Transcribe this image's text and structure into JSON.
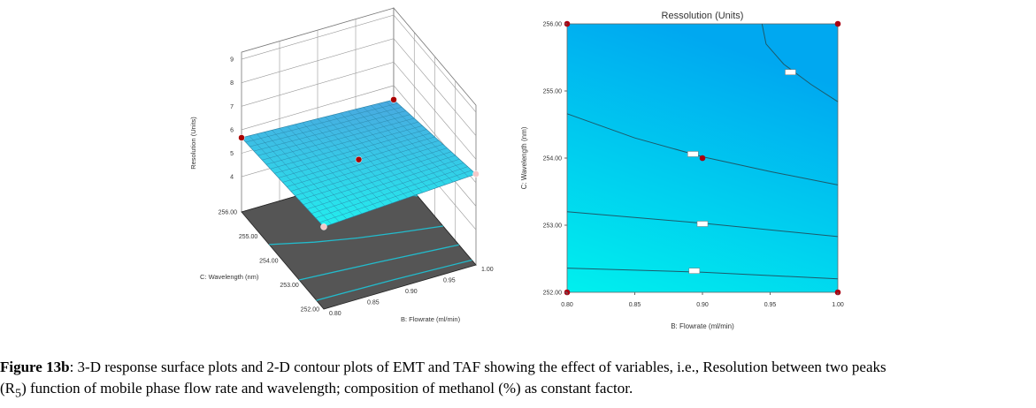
{
  "chart_data": [
    {
      "type": "surface3d",
      "zlabel": "Resolution (Units)",
      "xlabel": "B: Flowrate (ml/min)",
      "ylabel": "C: Wavelength (nm)",
      "z_ticks": [
        "4",
        "5",
        "6",
        "7",
        "8",
        "9"
      ],
      "z_tick_values": [
        4,
        5,
        6,
        7,
        8,
        9
      ],
      "x_ticks": [
        "0.80",
        "0.85",
        "0.90",
        "0.95",
        "1.00"
      ],
      "x_tick_values": [
        0.8,
        0.85,
        0.9,
        0.95,
        1.0
      ],
      "y_ticks": [
        "252.00",
        "253.00",
        "254.00",
        "255.00",
        "256.00"
      ],
      "y_tick_values": [
        252,
        253,
        254,
        255,
        256
      ],
      "surface_corners": {
        "b0.80_c256": 5.66,
        "b1.00_c256": 5.4,
        "b0.80_c252": 6.0,
        "b1.00_c252": 6.37
      },
      "grid_divisions": 20,
      "colors": {
        "surface": "#33ccee",
        "floor": "#555555",
        "contour": "#22bbcc",
        "point": "#aa0000"
      }
    },
    {
      "type": "contour",
      "title": "Ressolution (Units)",
      "xlabel": "B: Flowrate (ml/min)",
      "ylabel": "C: Wavelength (nm)",
      "xlim": [
        0.8,
        1.0
      ],
      "ylim": [
        252,
        256
      ],
      "x_ticks": [
        "0.80",
        "0.85",
        "0.90",
        "0.95",
        "1.00"
      ],
      "x_tick_values": [
        0.8,
        0.85,
        0.9,
        0.95,
        1.0
      ],
      "y_ticks": [
        "252.00",
        "253.00",
        "254.00",
        "255.00",
        "256.00"
      ],
      "y_tick_values": [
        252,
        253,
        254,
        255,
        256
      ],
      "contours": [
        {
          "points": [
            [
              0.944,
              256
            ],
            [
              0.947,
              255.7
            ],
            [
              0.96,
              255.4
            ],
            [
              0.98,
              255.1
            ],
            [
              1.0,
              254.84
            ]
          ],
          "label_at": [
            0.965,
            255.28
          ]
        },
        {
          "points": [
            [
              0.8,
              254.66
            ],
            [
              0.85,
              254.3
            ],
            [
              0.9,
              254.02
            ],
            [
              0.95,
              253.8
            ],
            [
              1.0,
              253.6
            ]
          ],
          "label_at": [
            0.893,
            254.06
          ]
        },
        {
          "points": [
            [
              0.8,
              253.2
            ],
            [
              0.9,
              253.03
            ],
            [
              1.0,
              252.83
            ]
          ],
          "label_at": [
            0.9,
            253.02
          ]
        },
        {
          "points": [
            [
              0.8,
              252.36
            ],
            [
              0.9,
              252.3
            ],
            [
              1.0,
              252.2
            ]
          ],
          "label_at": [
            0.894,
            252.32
          ]
        }
      ],
      "design_points": [
        [
          0.8,
          256
        ],
        [
          1.0,
          256
        ],
        [
          0.8,
          252
        ],
        [
          1.0,
          252
        ],
        [
          0.9,
          254
        ]
      ],
      "colors": {
        "top": "#00aaee",
        "bottom": "#00eeee",
        "line": "#1d5a6a",
        "point": "#aa0011"
      }
    }
  ],
  "caption": {
    "label": "Figure 13b",
    "text": ": 3-D response surface plots and 2-D contour plots of EMT and TAF showing the effect of variables, i.e., Resolution between two peaks",
    "line2_pre": "(R",
    "line2_sub": "5",
    "line2_post": ") function of mobile phase flow rate and wavelength; composition of methanol (%) as constant factor."
  }
}
